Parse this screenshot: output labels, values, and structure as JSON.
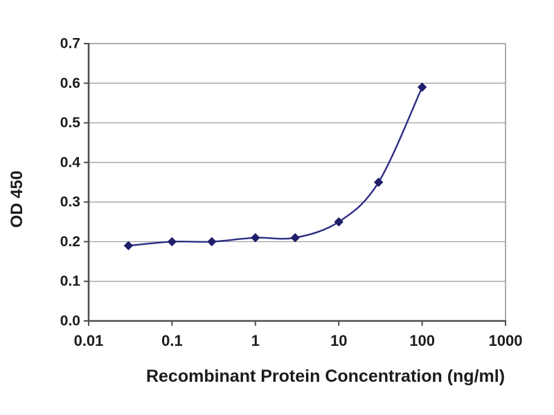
{
  "chart_data": {
    "type": "line",
    "title": "",
    "xlabel": "Recombinant Protein Concentration (ng/ml)",
    "ylabel": "OD 450",
    "x_scale": "log",
    "xlim": [
      0.01,
      1000
    ],
    "ylim": [
      0,
      0.7
    ],
    "x_ticks": [
      0.01,
      0.1,
      1,
      10,
      100,
      1000
    ],
    "x_tick_labels": [
      "0.01",
      "0.1",
      "1",
      "10",
      "100",
      "1000"
    ],
    "y_ticks": [
      0.0,
      0.1,
      0.2,
      0.3,
      0.4,
      0.5,
      0.6,
      0.7
    ],
    "y_tick_labels": [
      "0.0",
      "0.1",
      "0.2",
      "0.3",
      "0.4",
      "0.5",
      "0.6",
      "0.7"
    ],
    "grid": "horizontal",
    "legend": "none",
    "series": [
      {
        "marker": "diamond",
        "smooth": true,
        "x": [
          0.03,
          0.1,
          0.3,
          1,
          3,
          10,
          30,
          100
        ],
        "y": [
          0.19,
          0.2,
          0.2,
          0.21,
          0.21,
          0.25,
          0.35,
          0.59
        ]
      }
    ],
    "colors": {
      "series_line": "#2d2d85",
      "series_marker": "#1f1f6b",
      "gridline": "#999999",
      "plot_border": "#8a8a8a",
      "axis": "#4f4f4f",
      "text": "#1c1c1c",
      "background": "#ffffff"
    }
  }
}
